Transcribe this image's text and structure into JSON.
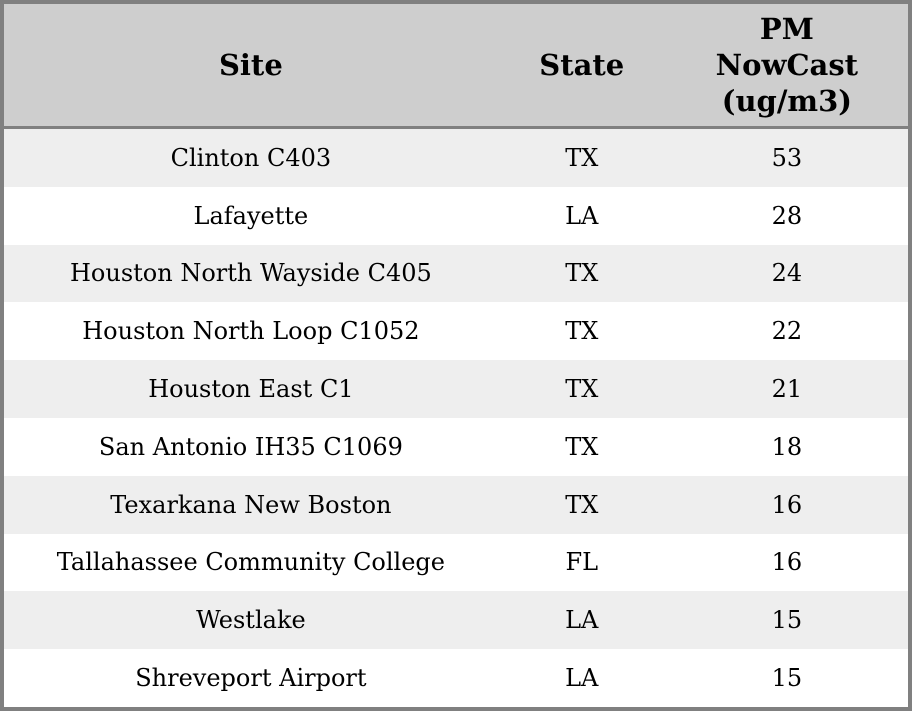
{
  "table": {
    "columns": [
      {
        "label": "Site"
      },
      {
        "label": "State"
      },
      {
        "label": "PM\nNowCast\n(ug/m3)"
      }
    ],
    "rows": [
      {
        "site": "Clinton C403",
        "state": "TX",
        "value": "53"
      },
      {
        "site": "Lafayette",
        "state": "LA",
        "value": "28"
      },
      {
        "site": "Houston North Wayside C405",
        "state": "TX",
        "value": "24"
      },
      {
        "site": "Houston North Loop C1052",
        "state": "TX",
        "value": "22"
      },
      {
        "site": "Houston East C1",
        "state": "TX",
        "value": "21"
      },
      {
        "site": "San Antonio IH35 C1069",
        "state": "TX",
        "value": "18"
      },
      {
        "site": "Texarkana New Boston",
        "state": "TX",
        "value": "16"
      },
      {
        "site": "Tallahassee Community College",
        "state": "FL",
        "value": "16"
      },
      {
        "site": "Westlake",
        "state": "LA",
        "value": "15"
      },
      {
        "site": "Shreveport Airport",
        "state": "LA",
        "value": "15"
      }
    ],
    "colors": {
      "frame_border": "#808080",
      "header_bg": "#cecece",
      "row_stripe_bg": "#eeeeee",
      "row_bg": "#ffffff",
      "text": "#000000"
    }
  }
}
